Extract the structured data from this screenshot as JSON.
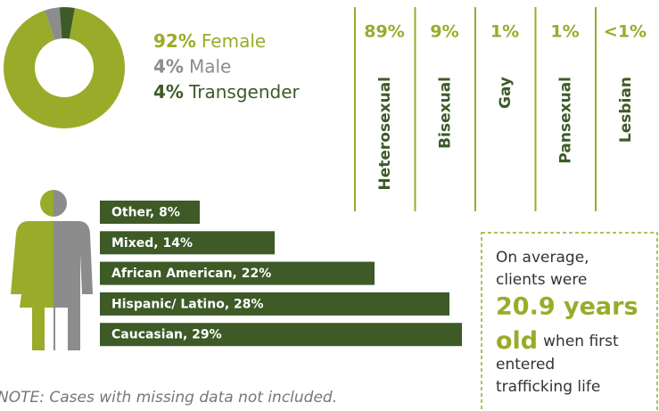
{
  "chart_data": [
    {
      "type": "pie",
      "donut": true,
      "categories": [
        "Female",
        "Male",
        "Transgender"
      ],
      "values": [
        92,
        4,
        4
      ],
      "value_labels": [
        "92%",
        "4%",
        "4%"
      ],
      "colors": [
        "#9aab2a",
        "#8c8c8c",
        "#3d5a27"
      ]
    },
    {
      "type": "columns",
      "categories": [
        "Heterosexual",
        "Bisexual",
        "Gay",
        "Pansexual",
        "Lesbian"
      ],
      "values": [
        89,
        9,
        1,
        1,
        0.5
      ],
      "value_labels": [
        "89%",
        "9%",
        "1%",
        "1%",
        "<1%"
      ],
      "color": "#9aab2a",
      "label_color": "#3d5a27"
    },
    {
      "type": "bar",
      "orientation": "horizontal",
      "values": [
        8,
        14,
        22,
        28,
        29
      ],
      "value_labels": [
        "Other, 8%",
        "Mixed, 14%",
        "African American, 22%",
        "Hispanic/ Latino, 28%",
        "Caucasian, 29%"
      ],
      "color": "#3d5a27"
    }
  ],
  "callout": {
    "line_1": "On average,",
    "line_2": "clients were",
    "highlight_1": "20.9 years",
    "highlight_2": "old",
    "line_3": "when first",
    "line_4": "entered",
    "line_5": "trafficking life"
  },
  "note": "NOTE: Cases with missing data not included."
}
